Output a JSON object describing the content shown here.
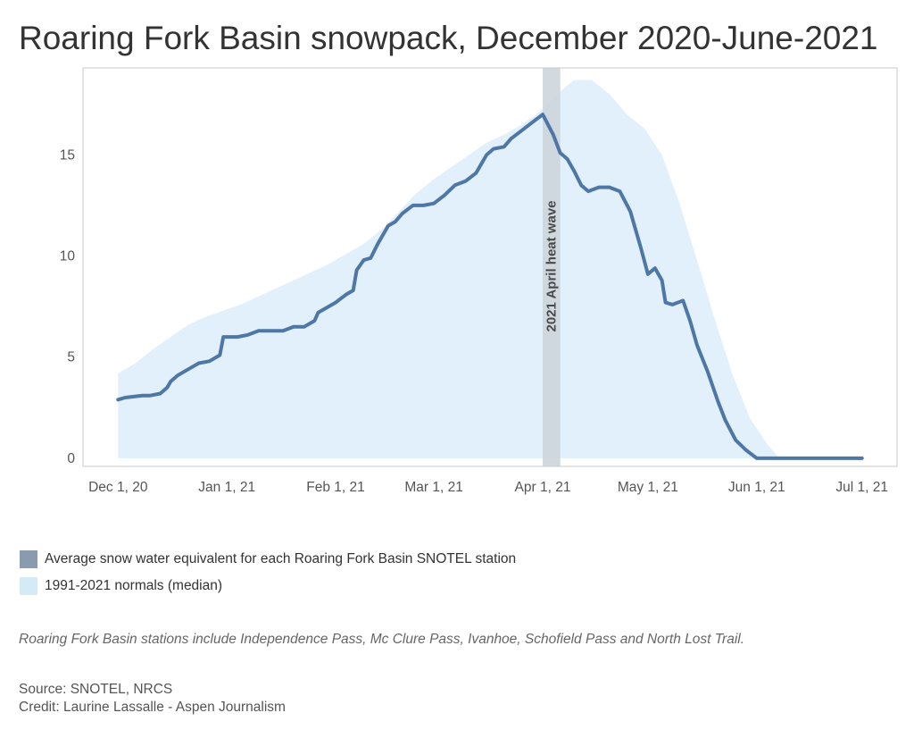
{
  "title": "Roaring Fork Basin snowpack, December 2020-June-2021",
  "legend": {
    "items": [
      {
        "label": "Average snow water equivalent for each Roaring Fork Basin SNOTEL station",
        "color": "#8a9bb0"
      },
      {
        "label": "1991-2021 normals (median)",
        "color": "#d6e9f7"
      }
    ]
  },
  "note": "Roaring Fork Basin stations include Independence Pass, Mc Clure Pass, Ivanhoe, Schofield Pass and North Lost Trail.",
  "source": "Source: SNOTEL, NRCS",
  "credit": "Credit: Laurine Lassalle - Aspen Journalism",
  "chart_data": {
    "type": "line",
    "x_type": "date",
    "x_ticks": [
      {
        "date": "2020-12-01",
        "label": "Dec 1, 20"
      },
      {
        "date": "2021-01-01",
        "label": "Jan 1, 21"
      },
      {
        "date": "2021-02-01",
        "label": "Feb 1, 21"
      },
      {
        "date": "2021-03-01",
        "label": "Mar 1, 21"
      },
      {
        "date": "2021-04-01",
        "label": "Apr 1, 21"
      },
      {
        "date": "2021-05-01",
        "label": "May 1, 21"
      },
      {
        "date": "2021-06-01",
        "label": "Jun 1, 21"
      },
      {
        "date": "2021-07-01",
        "label": "Jul 1, 21"
      }
    ],
    "xlim": [
      "2020-11-21",
      "2021-07-11"
    ],
    "y_ticks": [
      0,
      5,
      10,
      15
    ],
    "ylim": [
      -0.4,
      19.3
    ],
    "grid": false,
    "annotation": {
      "label": "2021 April heat wave",
      "start": "2021-04-01",
      "end": "2021-04-06",
      "color": "#cdd5dc"
    },
    "series": [
      {
        "name": "1991-2021 normals (median)",
        "type": "area",
        "color": "#e1f0fb",
        "x": [
          "2020-12-01",
          "2020-12-06",
          "2020-12-11",
          "2020-12-16",
          "2020-12-21",
          "2020-12-26",
          "2020-12-31",
          "2021-01-05",
          "2021-01-10",
          "2021-01-15",
          "2021-01-20",
          "2021-01-25",
          "2021-01-30",
          "2021-02-04",
          "2021-02-09",
          "2021-02-14",
          "2021-02-19",
          "2021-02-24",
          "2021-03-01",
          "2021-03-06",
          "2021-03-11",
          "2021-03-16",
          "2021-03-21",
          "2021-03-26",
          "2021-03-31",
          "2021-04-05",
          "2021-04-10",
          "2021-04-15",
          "2021-04-20",
          "2021-04-25",
          "2021-04-30",
          "2021-05-05",
          "2021-05-10",
          "2021-05-15",
          "2021-05-20",
          "2021-05-25",
          "2021-05-30",
          "2021-06-04",
          "2021-06-07",
          "2021-06-10",
          "2021-07-01"
        ],
        "y": [
          4.2,
          4.7,
          5.4,
          6.0,
          6.6,
          7.0,
          7.3,
          7.6,
          8.0,
          8.4,
          8.8,
          9.2,
          9.6,
          10.1,
          10.6,
          11.3,
          12.2,
          13.1,
          13.8,
          14.4,
          15.0,
          15.6,
          16.0,
          16.5,
          17.1,
          18.0,
          18.7,
          18.7,
          18.0,
          17.0,
          16.3,
          15.0,
          12.6,
          9.8,
          6.9,
          4.2,
          2.0,
          0.7,
          0.1,
          0.0,
          0.0
        ]
      },
      {
        "name": "Average snow water equivalent for each Roaring Fork Basin SNOTEL station",
        "type": "line",
        "color": "#4f77a6",
        "x": [
          "2020-12-01",
          "2020-12-03",
          "2020-12-08",
          "2020-12-10",
          "2020-12-13",
          "2020-12-15",
          "2020-12-16",
          "2020-12-18",
          "2020-12-21",
          "2020-12-24",
          "2020-12-27",
          "2020-12-30",
          "2020-12-31",
          "2021-01-04",
          "2021-01-07",
          "2021-01-10",
          "2021-01-17",
          "2021-01-20",
          "2021-01-23",
          "2021-01-26",
          "2021-01-27",
          "2021-01-30",
          "2021-02-01",
          "2021-02-04",
          "2021-02-06",
          "2021-02-07",
          "2021-02-09",
          "2021-02-11",
          "2021-02-13",
          "2021-02-16",
          "2021-02-18",
          "2021-02-20",
          "2021-02-23",
          "2021-02-26",
          "2021-03-01",
          "2021-03-04",
          "2021-03-07",
          "2021-03-10",
          "2021-03-13",
          "2021-03-16",
          "2021-03-18",
          "2021-03-21",
          "2021-03-23",
          "2021-03-26",
          "2021-03-29",
          "2021-04-01",
          "2021-04-04",
          "2021-04-06",
          "2021-04-08",
          "2021-04-10",
          "2021-04-12",
          "2021-04-14",
          "2021-04-17",
          "2021-04-20",
          "2021-04-23",
          "2021-04-26",
          "2021-04-29",
          "2021-05-01",
          "2021-05-03",
          "2021-05-05",
          "2021-05-06",
          "2021-05-08",
          "2021-05-11",
          "2021-05-13",
          "2021-05-15",
          "2021-05-18",
          "2021-05-21",
          "2021-05-23",
          "2021-05-26",
          "2021-05-29",
          "2021-06-01",
          "2021-06-03",
          "2021-06-07",
          "2021-07-01"
        ],
        "y": [
          2.9,
          3.0,
          3.1,
          3.1,
          3.2,
          3.5,
          3.8,
          4.1,
          4.4,
          4.7,
          4.8,
          5.1,
          6.0,
          6.0,
          6.1,
          6.3,
          6.3,
          6.5,
          6.5,
          6.8,
          7.2,
          7.5,
          7.7,
          8.1,
          8.3,
          9.3,
          9.8,
          9.9,
          10.6,
          11.5,
          11.7,
          12.1,
          12.5,
          12.5,
          12.6,
          13.0,
          13.5,
          13.7,
          14.1,
          15.0,
          15.3,
          15.4,
          15.8,
          16.2,
          16.6,
          17.0,
          16.0,
          15.1,
          14.8,
          14.2,
          13.5,
          13.2,
          13.4,
          13.4,
          13.2,
          12.2,
          10.4,
          9.1,
          9.4,
          8.8,
          7.7,
          7.6,
          7.8,
          6.8,
          5.6,
          4.3,
          2.8,
          1.9,
          0.9,
          0.4,
          0.0,
          0.0,
          0.0,
          0.0
        ]
      }
    ]
  }
}
